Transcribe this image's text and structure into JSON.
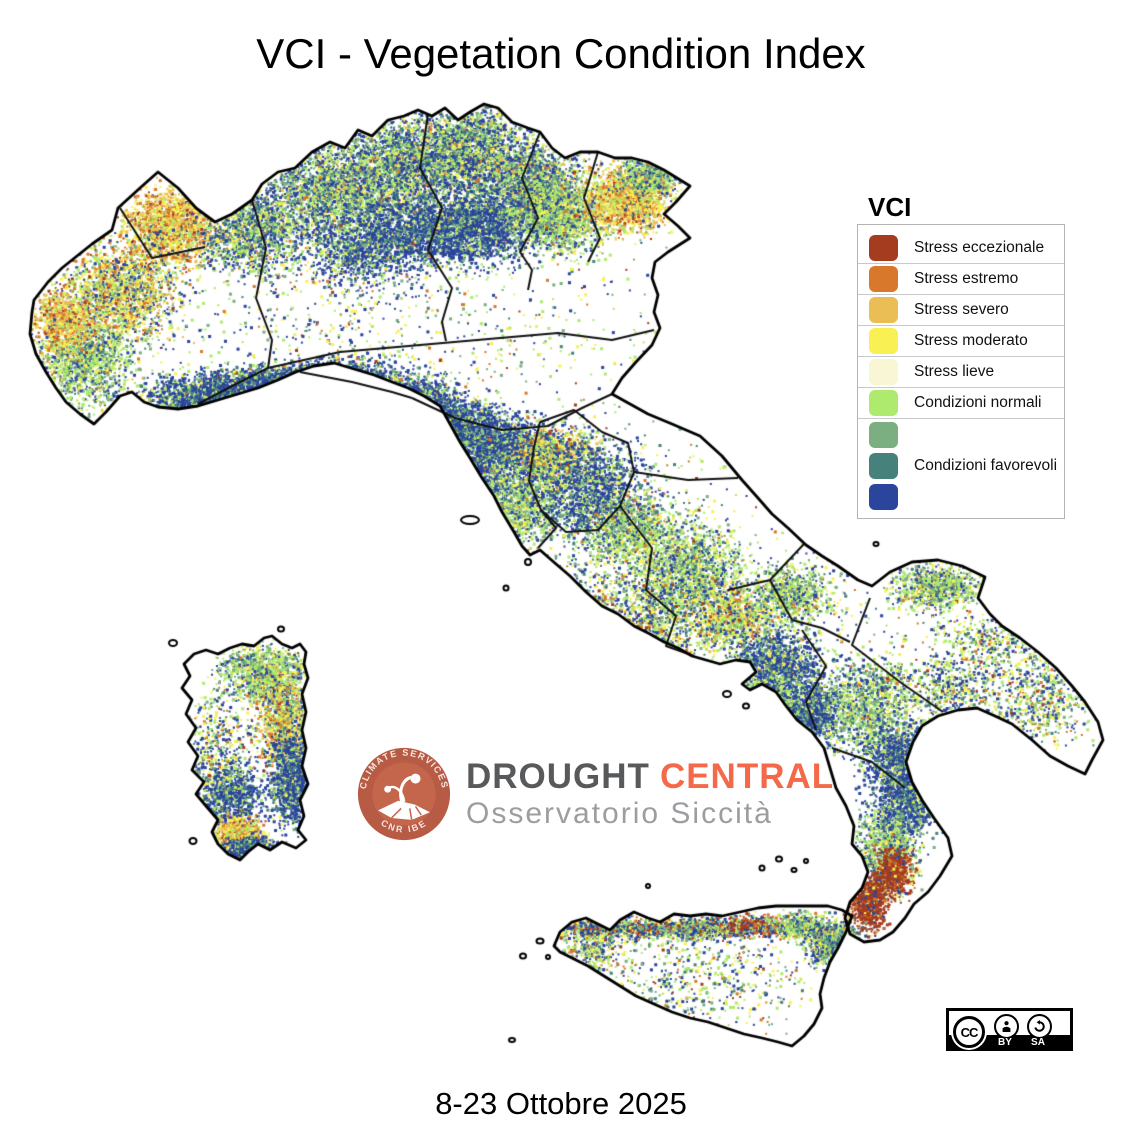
{
  "title": "VCI - Vegetation Condition Index",
  "footer": {
    "date_range": "8-23 Ottobre 2025"
  },
  "legend": {
    "heading": "VCI",
    "items": [
      {
        "color": "#a53c1f",
        "label": "Stress eccezionale"
      },
      {
        "color": "#d8782b",
        "label": "Stress estremo"
      },
      {
        "color": "#eabd55",
        "label": "Stress severo"
      },
      {
        "color": "#f9f054",
        "label": "Stress moderato"
      },
      {
        "color": "#f8f6d4",
        "label": "Stress lieve"
      },
      {
        "color": "#aeea6e",
        "label": "Condizioni normali"
      },
      {
        "color": "#7bae81",
        "label": ""
      },
      {
        "color": "#47817b",
        "label": "Condizioni favorevoli"
      },
      {
        "color": "#2a459b",
        "label": ""
      }
    ],
    "separators_after": [
      0,
      1,
      2,
      3,
      4,
      5
    ]
  },
  "logo": {
    "badge_text_top": "CLIMATE SERVICES",
    "badge_text_bottom": "CNR IBE",
    "brand_primary": "DROUGHT",
    "brand_secondary": "CENTRAL",
    "subtitle": "Osservatorio Siccità",
    "colors": {
      "badge_ring": "#b75b45",
      "badge_inner": "#c4664c",
      "primary": "#58595b",
      "secondary": "#f3694a",
      "subtitle": "#9b9da0"
    }
  },
  "license": {
    "cc_label": "CC",
    "by_label": "BY",
    "sa_label": "SA"
  },
  "map": {
    "outline_color": "#000000",
    "region_border_color": "#111111",
    "land_color": "#ffffff"
  }
}
